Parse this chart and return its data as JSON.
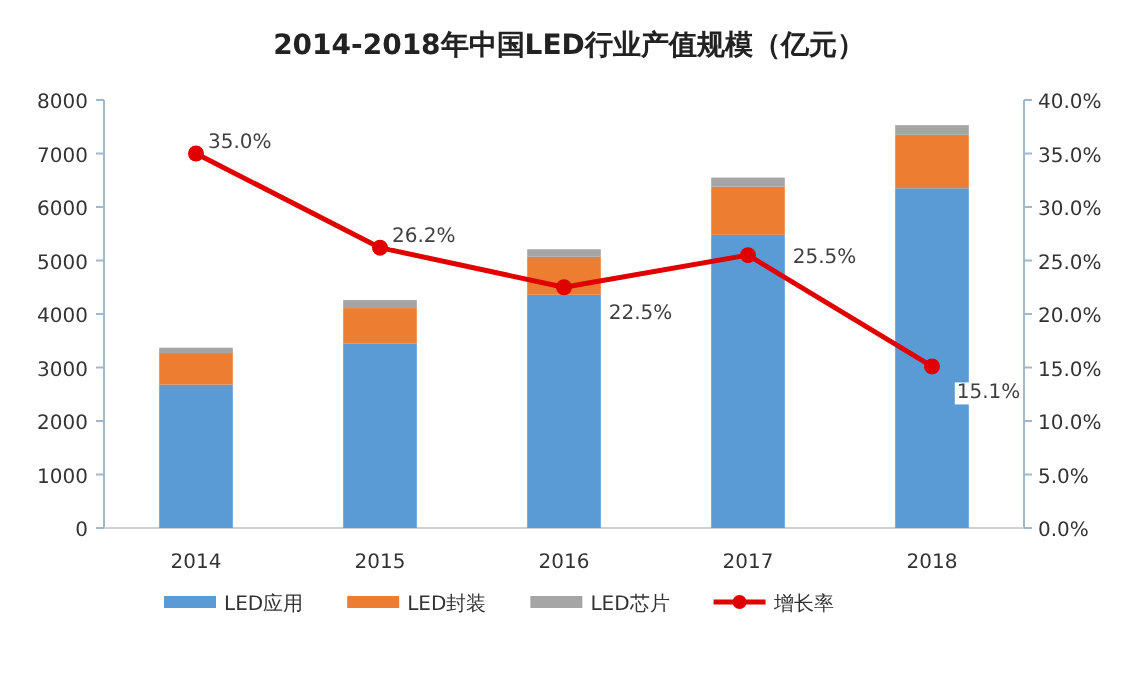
{
  "chart_data": {
    "type": "bar",
    "title": "2014-2018年中国LED行业产值规模（亿元）",
    "stacked": true,
    "categories": [
      "2014",
      "2015",
      "2016",
      "2017",
      "2018"
    ],
    "series": [
      {
        "name": "LED应用",
        "color": "#5b9bd5",
        "values": [
          2680,
          3450,
          4360,
          5480,
          6350
        ]
      },
      {
        "name": "LED封装",
        "color": "#ed7d31",
        "values": [
          590,
          660,
          710,
          900,
          1000
        ]
      },
      {
        "name": "LED芯片",
        "color": "#a5a5a5",
        "values": [
          100,
          150,
          140,
          170,
          180
        ]
      },
      {
        "name": "增长率",
        "type": "line",
        "axis": "y2",
        "color": "#e00000",
        "marker": "circle",
        "data_labels": true,
        "value_labels": [
          "35.0%",
          "26.2%",
          "22.5%",
          "25.5%",
          "15.1%"
        ],
        "values": [
          35.0,
          26.2,
          22.5,
          25.5,
          15.1
        ]
      }
    ],
    "ylim": [
      0,
      8000
    ],
    "yticks": [
      0,
      1000,
      2000,
      3000,
      4000,
      5000,
      6000,
      7000,
      8000
    ],
    "y2lim": [
      0,
      40
    ],
    "y2ticks": [
      {
        "value": 0,
        "label": "0.0%"
      },
      {
        "value": 5,
        "label": "5.0%"
      },
      {
        "value": 10,
        "label": "10.0%"
      },
      {
        "value": 15,
        "label": "15.0%"
      },
      {
        "value": 20,
        "label": "20.0%"
      },
      {
        "value": 25,
        "label": "25.0%"
      },
      {
        "value": 30,
        "label": "30.0%"
      },
      {
        "value": 35,
        "label": "35.0%"
      },
      {
        "value": 40,
        "label": "40.0%"
      }
    ],
    "grid": false,
    "legend": "bottom"
  }
}
